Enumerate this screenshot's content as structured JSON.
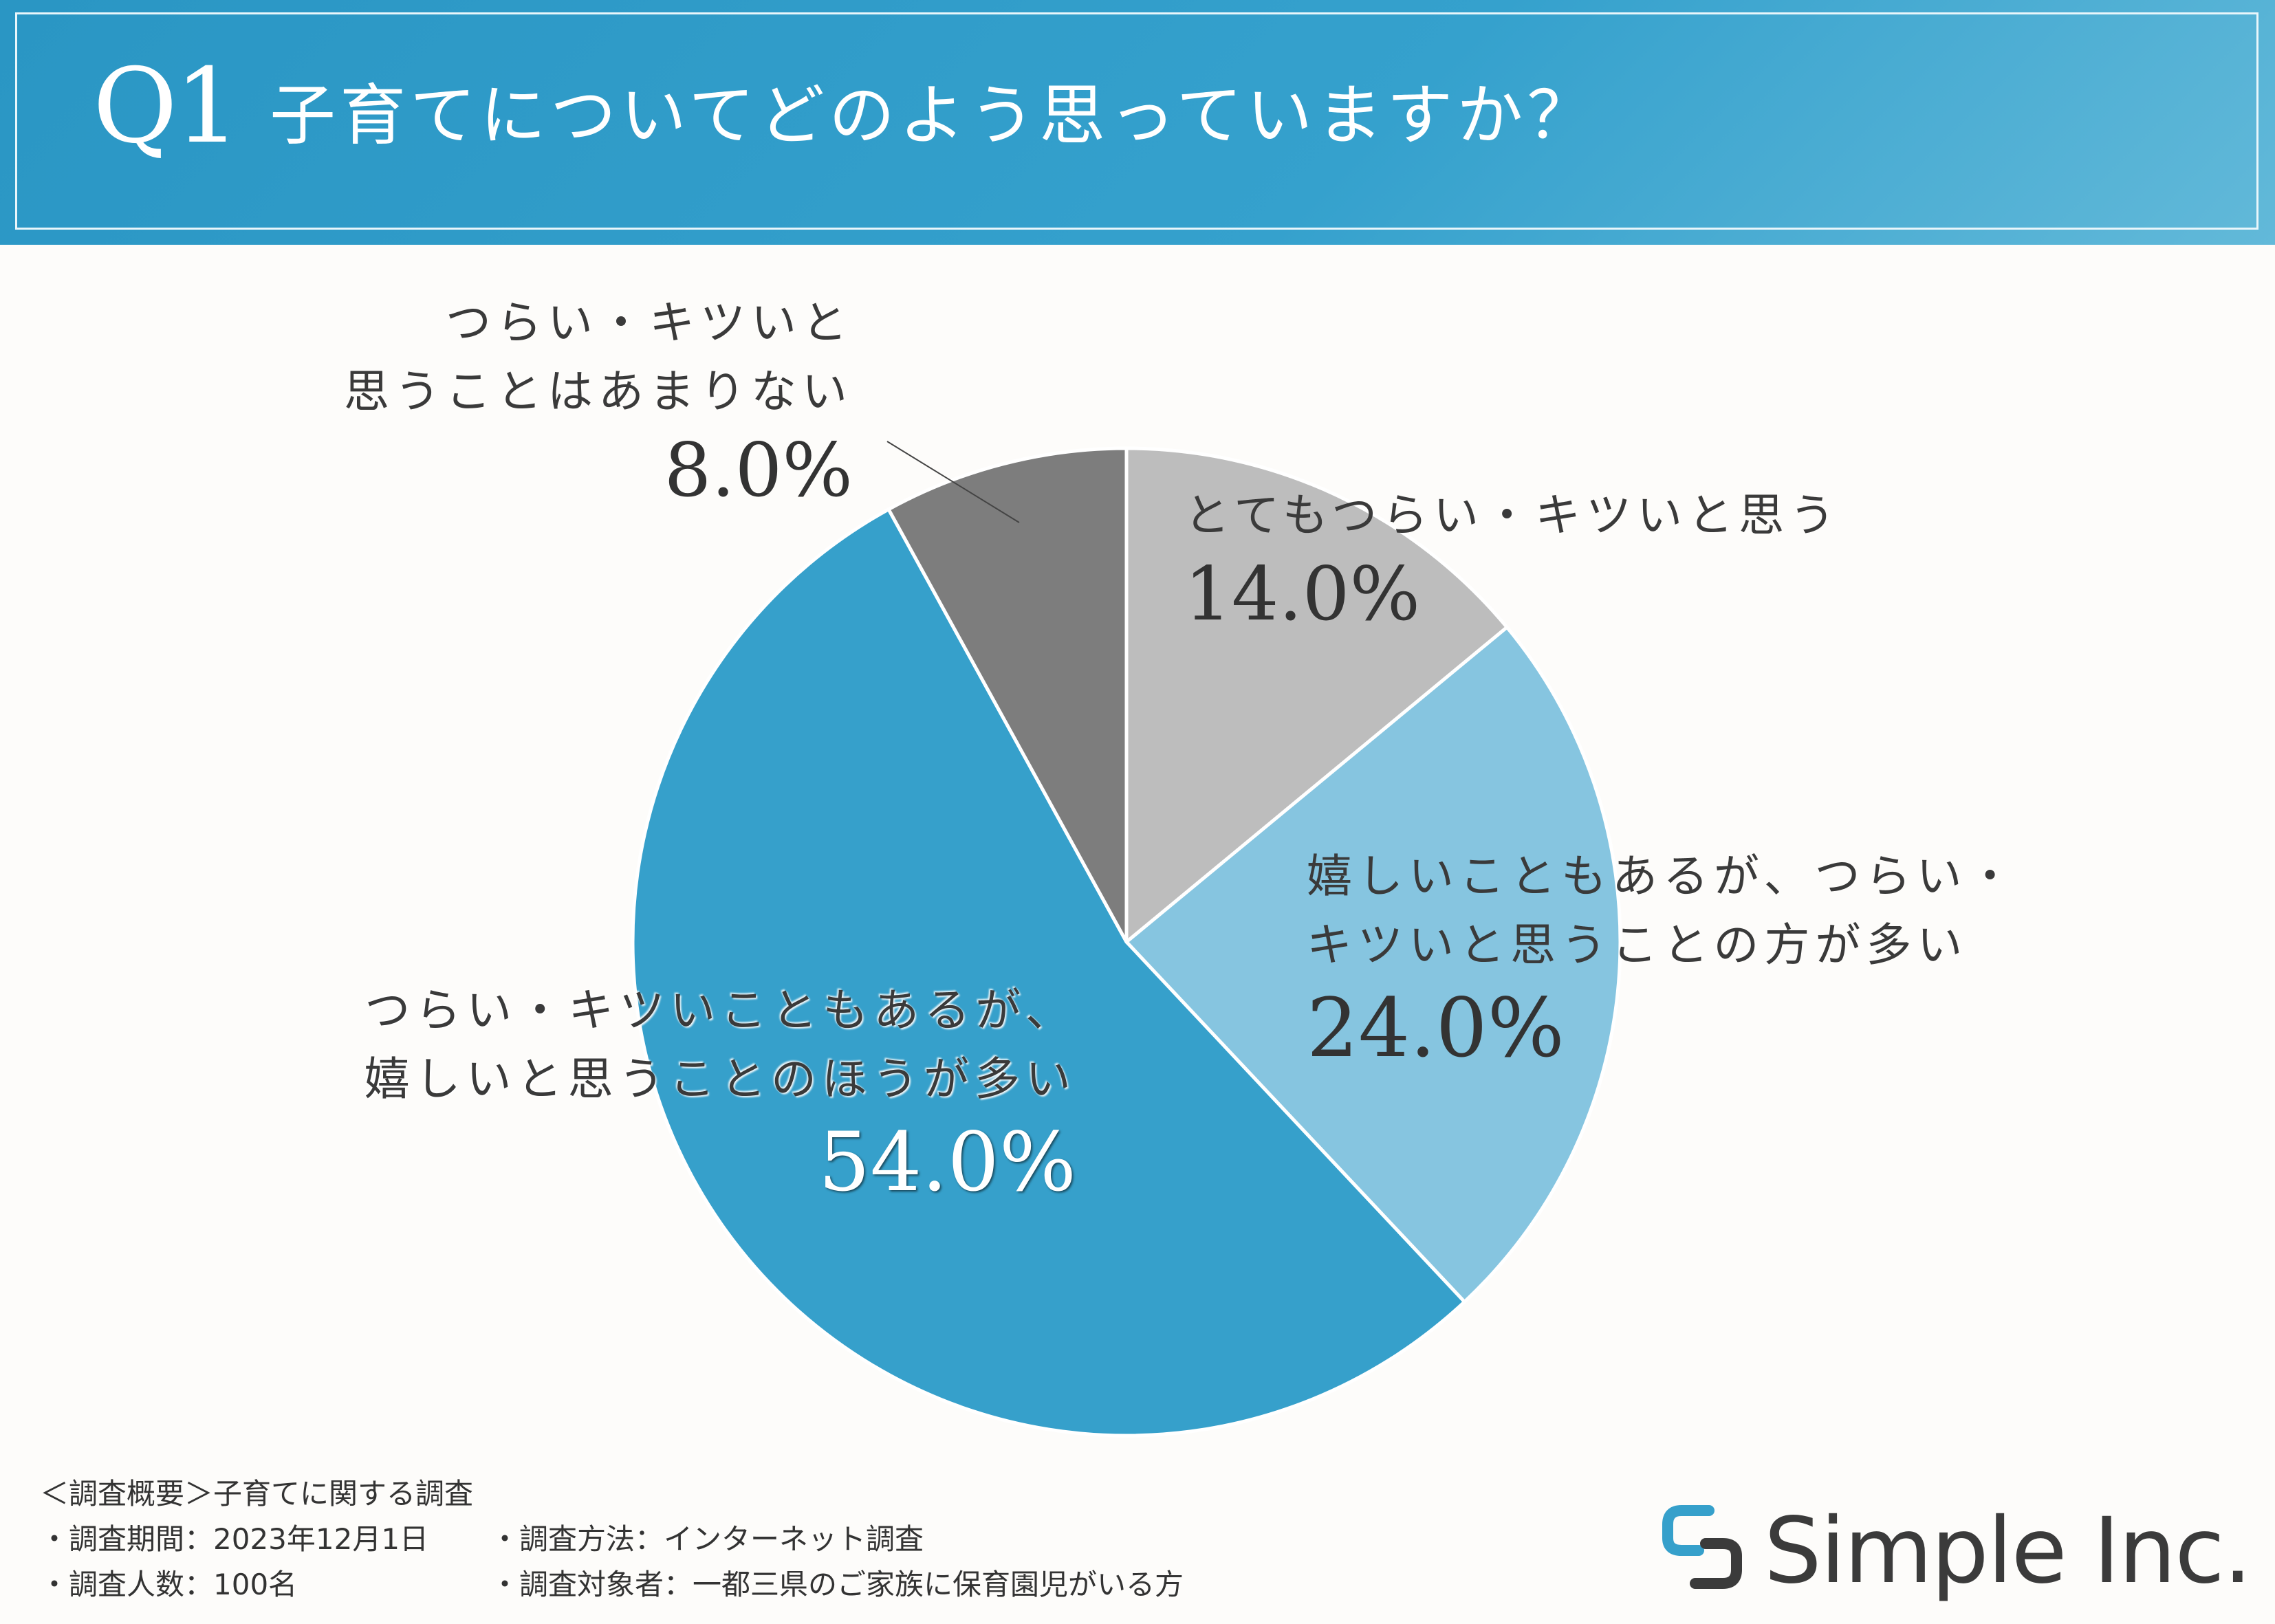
{
  "header": {
    "q_number": "Q1",
    "question": "子育てについてどのよう思っていますか？"
  },
  "colors": {
    "header_bg": "#2f9cc8",
    "slice_1": "#bdbdbd",
    "slice_2": "#86c5e0",
    "slice_3": "#36a0cb",
    "slice_4": "#7d7d7d"
  },
  "chart_data": {
    "type": "pie",
    "start_angle_deg": 0,
    "direction": "clockwise",
    "slices": [
      {
        "label_lines": [
          "とてもつらい・キツいと思う"
        ],
        "value": 14.0,
        "value_label": "14.0%",
        "color": "#bdbdbd"
      },
      {
        "label_lines": [
          "嬉しいこともあるが、つらい・",
          "キツいと思うことの方が多い"
        ],
        "value": 24.0,
        "value_label": "24.0%",
        "color": "#86c5e0"
      },
      {
        "label_lines": [
          "つらい・キツいこともあるが、",
          "嬉しいと思うことのほうが多い"
        ],
        "value": 54.0,
        "value_label": "54.0%",
        "color": "#36a0cb"
      },
      {
        "label_lines": [
          "つらい・キツいと",
          "思うことはあまりない"
        ],
        "value": 8.0,
        "value_label": "8.0%",
        "color": "#7d7d7d"
      }
    ]
  },
  "footer": {
    "summary": "＜調査概要＞子育てに関する調査",
    "period": "・調査期間：2023年12月1日",
    "method": "・調査方法：インターネット調査",
    "count": "・調査人数：100名",
    "target": "・調査対象者：一都三県のご家族に保育園児がいる方"
  },
  "logo": {
    "text": "Simple Inc."
  }
}
